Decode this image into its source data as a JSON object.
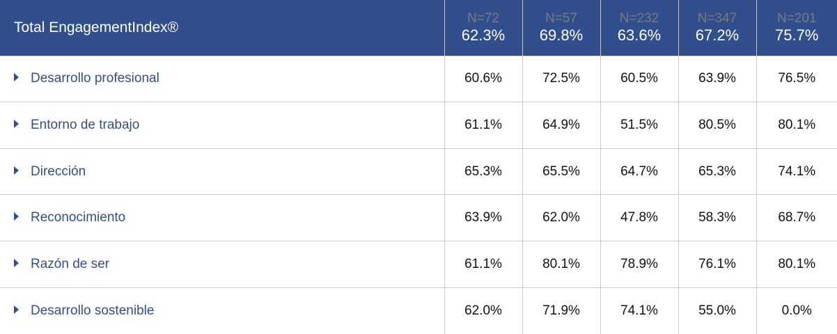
{
  "header": {
    "title": "Total EngagementIndex®",
    "columns": [
      {
        "n": "N=72",
        "value": "62.3%"
      },
      {
        "n": "N=57",
        "value": "69.8%"
      },
      {
        "n": "N=232",
        "value": "63.6%"
      },
      {
        "n": "N=347",
        "value": "67.2%"
      },
      {
        "n": "N=201",
        "value": "75.7%"
      }
    ]
  },
  "rows": [
    {
      "label": "Desarrollo profesional",
      "values": [
        "60.6%",
        "72.5%",
        "60.5%",
        "63.9%",
        "76.5%"
      ]
    },
    {
      "label": "Entorno de trabajo",
      "values": [
        "61.1%",
        "64.9%",
        "51.5%",
        "80.5%",
        "80.1%"
      ]
    },
    {
      "label": "Dirección",
      "values": [
        "65.3%",
        "65.5%",
        "64.7%",
        "65.3%",
        "74.1%"
      ]
    },
    {
      "label": "Reconocimiento",
      "values": [
        "63.9%",
        "62.0%",
        "47.8%",
        "58.3%",
        "68.7%"
      ]
    },
    {
      "label": "Razón de ser",
      "values": [
        "61.1%",
        "80.1%",
        "78.9%",
        "76.1%",
        "80.1%"
      ]
    },
    {
      "label": "Desarrollo sostenible",
      "values": [
        "62.0%",
        "71.9%",
        "74.1%",
        "55.0%",
        "0.0%"
      ]
    }
  ]
}
